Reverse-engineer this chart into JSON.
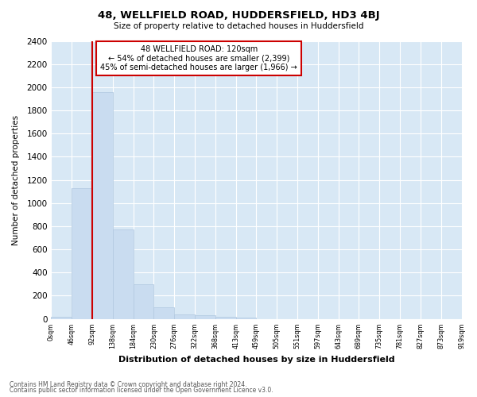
{
  "title": "48, WELLFIELD ROAD, HUDDERSFIELD, HD3 4BJ",
  "subtitle": "Size of property relative to detached houses in Huddersfield",
  "xlabel": "Distribution of detached houses by size in Huddersfield",
  "ylabel": "Number of detached properties",
  "bar_values": [
    20,
    1130,
    1960,
    770,
    300,
    100,
    40,
    30,
    20,
    10,
    0,
    0,
    0,
    0,
    0,
    0,
    0,
    0,
    0,
    0
  ],
  "x_labels": [
    "0sqm",
    "46sqm",
    "92sqm",
    "138sqm",
    "184sqm",
    "230sqm",
    "276sqm",
    "322sqm",
    "368sqm",
    "413sqm",
    "459sqm",
    "505sqm",
    "551sqm",
    "597sqm",
    "643sqm",
    "689sqm",
    "735sqm",
    "781sqm",
    "827sqm",
    "873sqm",
    "919sqm"
  ],
  "bar_color": "#c9dcf0",
  "bar_edge_color": "#b0c8e0",
  "grid_color": "#ffffff",
  "bg_color": "#d8e8f5",
  "property_line_x": 2.0,
  "property_label": "48 WELLFIELD ROAD: 120sqm",
  "annotation_line1": "← 54% of detached houses are smaller (2,399)",
  "annotation_line2": "45% of semi-detached houses are larger (1,966) →",
  "annotation_box_color": "#cc0000",
  "ylim": [
    0,
    2400
  ],
  "yticks": [
    0,
    200,
    400,
    600,
    800,
    1000,
    1200,
    1400,
    1600,
    1800,
    2000,
    2200,
    2400
  ],
  "footer_line1": "Contains HM Land Registry data © Crown copyright and database right 2024.",
  "footer_line2": "Contains public sector information licensed under the Open Government Licence v3.0."
}
